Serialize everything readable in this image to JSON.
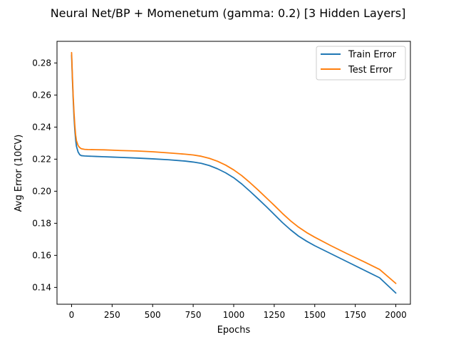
{
  "chart_data": {
    "type": "line",
    "title": "Neural Net/BP + Momenetum (gamma: 0.2) [3 Hidden Layers]",
    "xlabel": "Epochs",
    "ylabel": "Avg Error (10CV)",
    "xlim": [
      -90,
      2090
    ],
    "ylim": [
      0.1295,
      0.2935
    ],
    "xticks": [
      0,
      250,
      500,
      750,
      1000,
      1250,
      1500,
      1750,
      2000
    ],
    "yticks": [
      0.14,
      0.16,
      0.18,
      0.2,
      0.22,
      0.24,
      0.26,
      0.28
    ],
    "ytick_labels": [
      "0.14",
      "0.16",
      "0.18",
      "0.20",
      "0.22",
      "0.24",
      "0.26",
      "0.28"
    ],
    "grid": false,
    "legend_position": "top-right",
    "series": [
      {
        "name": "Train Error",
        "color": "#1f77b4",
        "x": [
          0,
          5,
          10,
          15,
          20,
          25,
          30,
          40,
          50,
          60,
          80,
          100,
          150,
          200,
          250,
          300,
          400,
          500,
          600,
          700,
          750,
          800,
          850,
          900,
          950,
          1000,
          1050,
          1100,
          1150,
          1200,
          1250,
          1300,
          1350,
          1400,
          1450,
          1500,
          1600,
          1700,
          1800,
          1900,
          2000
        ],
        "y": [
          0.285,
          0.27,
          0.257,
          0.246,
          0.238,
          0.232,
          0.228,
          0.2245,
          0.2228,
          0.2222,
          0.222,
          0.2219,
          0.2217,
          0.2215,
          0.2213,
          0.2211,
          0.2207,
          0.2202,
          0.2196,
          0.2188,
          0.2182,
          0.2174,
          0.216,
          0.214,
          0.2115,
          0.2084,
          0.2045,
          0.2,
          0.1953,
          0.1905,
          0.1855,
          0.1805,
          0.176,
          0.172,
          0.1688,
          0.166,
          0.161,
          0.156,
          0.151,
          0.146,
          0.1365
        ]
      },
      {
        "name": "Test Error",
        "color": "#ff7f0e",
        "x": [
          0,
          5,
          10,
          15,
          20,
          25,
          30,
          40,
          50,
          60,
          80,
          100,
          150,
          200,
          250,
          300,
          400,
          500,
          600,
          700,
          750,
          800,
          850,
          900,
          950,
          1000,
          1050,
          1100,
          1150,
          1200,
          1250,
          1300,
          1350,
          1400,
          1450,
          1500,
          1600,
          1700,
          1800,
          1900,
          2000
        ],
        "y": [
          0.2865,
          0.272,
          0.259,
          0.249,
          0.241,
          0.235,
          0.2315,
          0.2285,
          0.2272,
          0.2265,
          0.2261,
          0.226,
          0.2259,
          0.2258,
          0.2256,
          0.2254,
          0.2251,
          0.2246,
          0.2239,
          0.2231,
          0.2226,
          0.2218,
          0.2205,
          0.2187,
          0.2163,
          0.2133,
          0.2097,
          0.2054,
          0.2008,
          0.196,
          0.1912,
          0.1862,
          0.1816,
          0.1776,
          0.1742,
          0.1713,
          0.166,
          0.161,
          0.1562,
          0.1512,
          0.1425
        ]
      }
    ]
  }
}
